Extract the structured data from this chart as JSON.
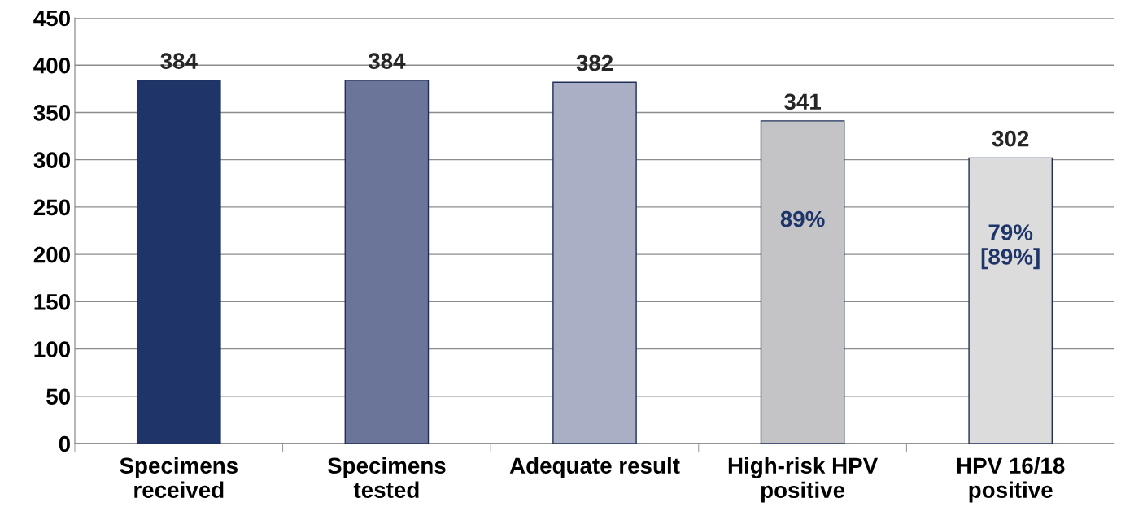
{
  "chart_data": {
    "type": "bar",
    "categories": [
      "Specimens\nreceived",
      "Specimens\ntested",
      "Adequate result",
      "High-risk HPV\npositive",
      "HPV 16/18\npositive"
    ],
    "values": [
      384,
      384,
      382,
      341,
      302
    ],
    "colors": [
      "#1f3569",
      "#6b7599",
      "#a9afc4",
      "#c4c4c6",
      "#dcdcdc"
    ],
    "data_labels": true,
    "ylim": [
      0,
      450
    ],
    "yticks": [
      0,
      50,
      100,
      150,
      200,
      250,
      300,
      350,
      400,
      450
    ],
    "grid": "y",
    "annotations": [
      "89%",
      "79%\n[89%]"
    ]
  }
}
